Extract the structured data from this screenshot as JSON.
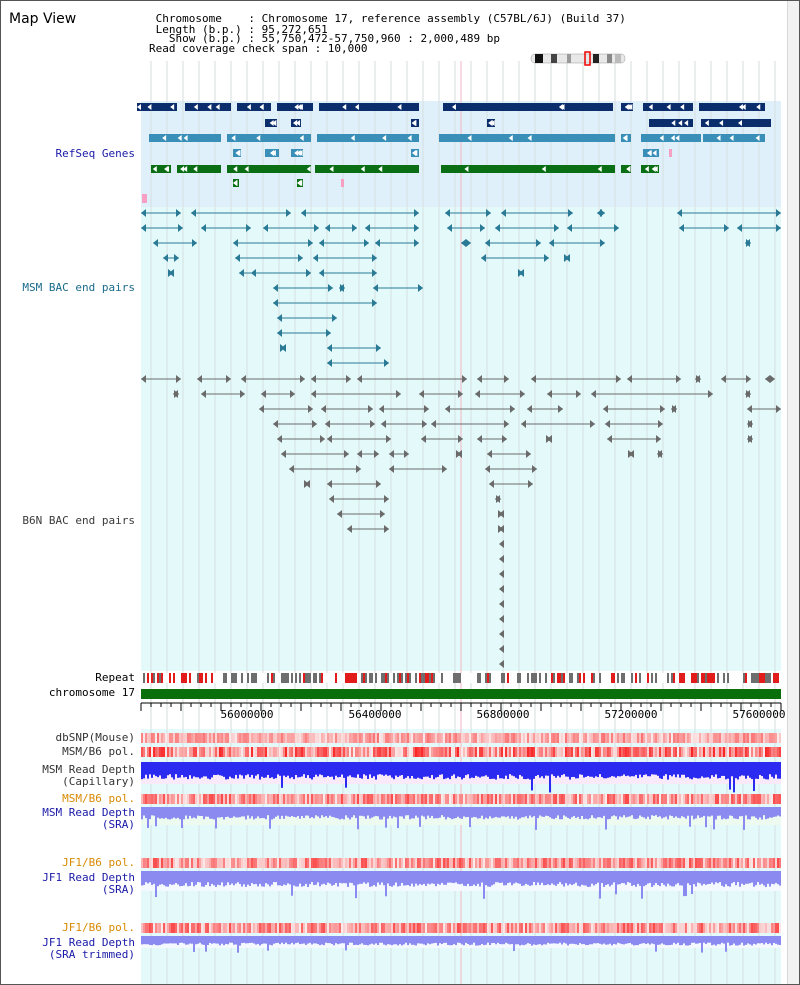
{
  "map": {
    "title": "Map View",
    "chromosome_line": " Chromosome    : Chromosome 17, reference assembly (C57BL/6J) (Build 37)",
    "length_line": " Length (b.p.) : 95,272,651",
    "show_line": "   Show (b.p.) : 55,750,472-57,750,960 : 2,000,489 bp",
    "span_line": "Read coverage check span : 10,000"
  },
  "tracks": {
    "refseq": "RefSeq Genes",
    "msm_bac": "MSM BAC end pairs",
    "b6n_bac": "B6N BAC end pairs",
    "repeat": "Repeat",
    "chromosome": "chromosome 17",
    "dbsnp": "dbSNP(Mouse)",
    "msm_b6_pol_1": "MSM/B6 pol.",
    "msm_depth_cap": "MSM Read Depth\n(Capillary)",
    "msm_b6_pol_2": "MSM/B6 pol.",
    "msm_depth_sra": "MSM Read Depth\n(SRA)",
    "jf1_b6_pol_1": "JF1/B6 pol.",
    "jf1_depth_sra": "JF1 Read Depth\n(SRA)",
    "jf1_b6_pol_2": "JF1/B6 pol.",
    "jf1_depth_trim": "JF1 Read Depth\n(SRA trimmed)"
  },
  "axis": {
    "ticks": [
      "56000000",
      "56400000",
      "56800000",
      "57200000",
      "57600000"
    ]
  },
  "colors": {
    "gene_dark": "#0b2d6b",
    "gene_mid": "#3a8fb8",
    "gene_green": "#0a6e14",
    "msm_pair": "#2a7a96",
    "b6n_pair": "#6a6a6a",
    "refseq_label": "#1a1aa8",
    "msm_label": "#1a6a8a",
    "b6n_label": "#3a3a3a",
    "orange_label": "#d88a00",
    "blue_label": "#1a1aa8",
    "refseq_band": "#dff0fa",
    "track_band": "#e4fafa",
    "depth_blue": "#2a2af0",
    "depth_light": "#8a8af0"
  }
}
